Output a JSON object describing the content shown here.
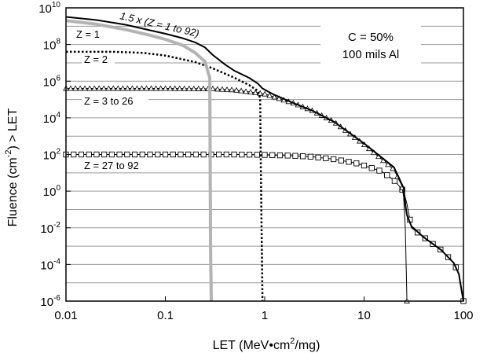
{
  "chart_data": {
    "type": "line",
    "xlabel": "LET (MeV•cm2/mg)",
    "ylabel": "Fluence (cm-2) > LET",
    "xscale": "log",
    "yscale": "log",
    "xlim": [
      0.01,
      100
    ],
    "ylim": [
      1e-06,
      10000000000.0
    ],
    "grid": "horizontal",
    "x_ticks": [
      {
        "value": 0.01,
        "label": "0.01"
      },
      {
        "value": 0.1,
        "label": "0.1"
      },
      {
        "value": 1,
        "label": "1"
      },
      {
        "value": 10,
        "label": "10"
      },
      {
        "value": 100,
        "label": "100"
      }
    ],
    "y_ticks": [
      {
        "value": 1e-06,
        "base": "10",
        "exp": "-6"
      },
      {
        "value": 0.0001,
        "base": "10",
        "exp": "-4"
      },
      {
        "value": 0.01,
        "base": "10",
        "exp": "-2"
      },
      {
        "value": 1,
        "base": "10",
        "exp": "0"
      },
      {
        "value": 100.0,
        "base": "10",
        "exp": "2"
      },
      {
        "value": 10000.0,
        "base": "10",
        "exp": "4"
      },
      {
        "value": 1000000.0,
        "base": "10",
        "exp": "6"
      },
      {
        "value": 100000000.0,
        "base": "10",
        "exp": "8"
      },
      {
        "value": 10000000000.0,
        "base": "10",
        "exp": "10"
      }
    ],
    "annotations": {
      "condition": "C = 50%",
      "shielding": "100 mils Al"
    },
    "series": [
      {
        "name": "1.5 x (Z = 1 to 92)",
        "style": "solid-black",
        "points": [
          [
            0.01,
            3200000000.0
          ],
          [
            0.02,
            2200000000.0
          ],
          [
            0.04,
            1200000000.0
          ],
          [
            0.07,
            600000000.0
          ],
          [
            0.1,
            390000000.0
          ],
          [
            0.15,
            220000000.0
          ],
          [
            0.2,
            130000000.0
          ],
          [
            0.25,
            70000000.0
          ],
          [
            0.3,
            27000000.0
          ],
          [
            0.4,
            8000000.0
          ],
          [
            0.5,
            3600000.0
          ],
          [
            0.7,
            1500000.0
          ],
          [
            0.85,
            750000.0
          ],
          [
            0.95,
            400000.0
          ],
          [
            1.2,
            200000.0
          ],
          [
            2,
            60000.0
          ],
          [
            3,
            25000.0
          ],
          [
            5,
            6000.0
          ],
          [
            10,
            400.0
          ],
          [
            20,
            20.0
          ],
          [
            25,
            1.5
          ],
          [
            26,
            0.2
          ],
          [
            27,
            0.05
          ],
          [
            30,
            0.012
          ],
          [
            40,
            0.003
          ],
          [
            60,
            0.0006
          ],
          [
            80,
            0.00012
          ],
          [
            90,
            3e-05
          ],
          [
            95,
            5e-06
          ],
          [
            100,
            1e-06
          ]
        ]
      },
      {
        "name": "Z = 1",
        "style": "gray-thick",
        "points": [
          [
            0.01,
            2000000000.0
          ],
          [
            0.02,
            1300000000.0
          ],
          [
            0.04,
            650000000.0
          ],
          [
            0.07,
            320000000.0
          ],
          [
            0.1,
            190000000.0
          ],
          [
            0.15,
            90000000.0
          ],
          [
            0.2,
            35000000.0
          ],
          [
            0.25,
            12000000.0
          ],
          [
            0.28,
            1500000.0
          ],
          [
            0.285,
            0.001
          ],
          [
            0.29,
            1e-06
          ]
        ]
      },
      {
        "name": "Z = 2",
        "style": "dotted-black",
        "points": [
          [
            0.01,
            40000000.0
          ],
          [
            0.03,
            40000000.0
          ],
          [
            0.06,
            35000000.0
          ],
          [
            0.1,
            25000000.0
          ],
          [
            0.2,
            11000000.0
          ],
          [
            0.3,
            5000000.0
          ],
          [
            0.5,
            1500000.0
          ],
          [
            0.7,
            600000.0
          ],
          [
            0.85,
            300000.0
          ],
          [
            0.9,
            120000.0
          ],
          [
            0.92,
            1.0
          ],
          [
            0.95,
            1e-06
          ]
        ]
      },
      {
        "name": "Z = 3 to 26",
        "style": "triangle-markers",
        "points": [
          [
            0.01,
            400000.0
          ],
          [
            0.03,
            400000.0
          ],
          [
            0.1,
            400000.0
          ],
          [
            0.3,
            380000.0
          ],
          [
            0.5,
            330000.0
          ],
          [
            1,
            200000.0
          ],
          [
            2,
            60000.0
          ],
          [
            3,
            25000.0
          ],
          [
            5,
            6000.0
          ],
          [
            10,
            350.0
          ],
          [
            20,
            15.0
          ],
          [
            24,
            2.0
          ],
          [
            25,
            0.5
          ],
          [
            26,
            0.01
          ],
          [
            26.5,
            0.0001
          ],
          [
            27,
            1e-06
          ]
        ]
      },
      {
        "name": "Z = 27 to 92",
        "style": "square-markers",
        "points": [
          [
            0.01,
            100.0
          ],
          [
            0.1,
            100.0
          ],
          [
            0.5,
            100.0
          ],
          [
            1,
            95.0
          ],
          [
            2,
            85.0
          ],
          [
            3,
            75.0
          ],
          [
            5,
            55.0
          ],
          [
            8,
            35.0
          ],
          [
            10,
            25.0
          ],
          [
            15,
            12.0
          ],
          [
            20,
            4.0
          ],
          [
            25,
            1.0
          ],
          [
            27,
            0.2
          ],
          [
            30,
            0.01
          ],
          [
            40,
            0.003
          ],
          [
            60,
            0.0006
          ],
          [
            80,
            0.00012
          ],
          [
            90,
            3e-05
          ],
          [
            95,
            4e-06
          ],
          [
            100,
            1e-06
          ]
        ]
      }
    ]
  }
}
